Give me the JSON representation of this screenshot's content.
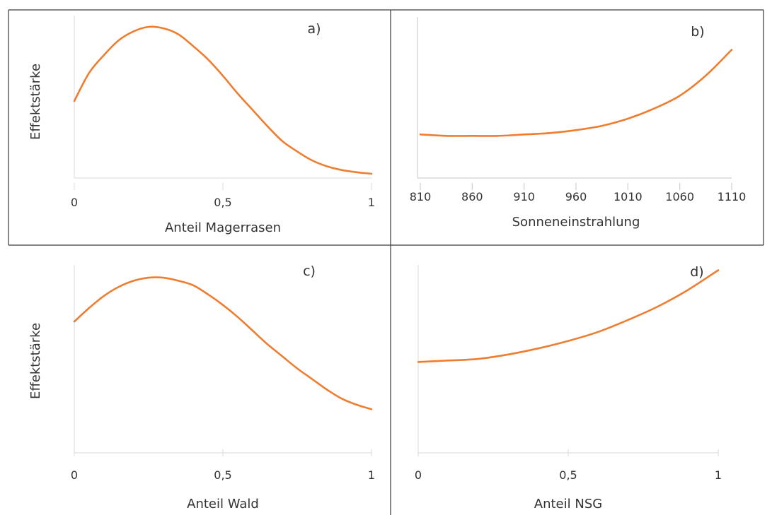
{
  "ylabel": "Effektstärke",
  "chart_data": [
    {
      "panel": "a)",
      "type": "line",
      "xlabel": "Anteil Magerrasen",
      "xticks": [
        "0",
        "0,5",
        "1"
      ],
      "xlim": [
        0,
        1
      ],
      "ylim": [
        0,
        1
      ],
      "series": [
        {
          "x": [
            0,
            0.05,
            0.1,
            0.15,
            0.2,
            0.25,
            0.3,
            0.35,
            0.4,
            0.45,
            0.5,
            0.55,
            0.6,
            0.65,
            0.7,
            0.75,
            0.8,
            0.85,
            0.9,
            0.95,
            1
          ],
          "y": [
            0.5,
            0.69,
            0.81,
            0.91,
            0.97,
            1.0,
            0.99,
            0.95,
            0.87,
            0.78,
            0.67,
            0.55,
            0.44,
            0.33,
            0.23,
            0.16,
            0.1,
            0.06,
            0.035,
            0.02,
            0.01
          ]
        }
      ]
    },
    {
      "panel": "b)",
      "type": "line",
      "xlabel": "Sonneneinstrahlung",
      "xticks": [
        "810",
        "860",
        "910",
        "960",
        "1010",
        "1060",
        "1110"
      ],
      "xlim": [
        810,
        1110
      ],
      "ylim": [
        0,
        1
      ],
      "series": [
        {
          "x": [
            810,
            835,
            860,
            885,
            910,
            935,
            960,
            985,
            1010,
            1035,
            1060,
            1085,
            1110
          ],
          "y": [
            0.23,
            0.22,
            0.22,
            0.22,
            0.23,
            0.24,
            0.26,
            0.29,
            0.34,
            0.41,
            0.5,
            0.64,
            0.82
          ]
        }
      ]
    },
    {
      "panel": "c)",
      "type": "line",
      "xlabel": "Anteil Wald",
      "xticks": [
        "0",
        "0,5",
        "1"
      ],
      "xlim": [
        0,
        1
      ],
      "ylim": [
        0,
        1
      ],
      "series": [
        {
          "x": [
            0,
            0.05,
            0.1,
            0.15,
            0.2,
            0.25,
            0.3,
            0.35,
            0.4,
            0.45,
            0.5,
            0.55,
            0.6,
            0.65,
            0.7,
            0.75,
            0.8,
            0.85,
            0.9,
            0.95,
            1
          ],
          "y": [
            0.7,
            0.79,
            0.87,
            0.93,
            0.97,
            0.99,
            0.99,
            0.97,
            0.94,
            0.88,
            0.81,
            0.73,
            0.64,
            0.55,
            0.47,
            0.39,
            0.32,
            0.25,
            0.19,
            0.15,
            0.12
          ]
        }
      ]
    },
    {
      "panel": "d)",
      "type": "line",
      "xlabel": "Anteil NSG",
      "xticks": [
        "0",
        "0,5",
        "1"
      ],
      "xlim": [
        0,
        1
      ],
      "ylim": [
        0,
        1
      ],
      "series": [
        {
          "x": [
            0,
            0.1,
            0.2,
            0.3,
            0.4,
            0.5,
            0.6,
            0.7,
            0.8,
            0.9,
            1
          ],
          "y": [
            0.43,
            0.44,
            0.45,
            0.48,
            0.52,
            0.57,
            0.63,
            0.71,
            0.8,
            0.91,
            1.04
          ]
        }
      ]
    }
  ]
}
